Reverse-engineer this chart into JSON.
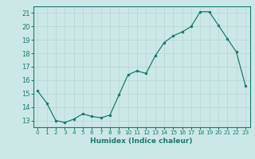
{
  "x": [
    0,
    1,
    2,
    3,
    4,
    5,
    6,
    7,
    8,
    9,
    10,
    11,
    12,
    13,
    14,
    15,
    16,
    17,
    18,
    19,
    20,
    21,
    22,
    23
  ],
  "y": [
    15.2,
    14.3,
    13.0,
    12.85,
    13.1,
    13.5,
    13.3,
    13.2,
    13.4,
    14.9,
    16.4,
    16.7,
    16.5,
    17.8,
    18.8,
    19.3,
    19.6,
    20.0,
    21.1,
    21.1,
    20.1,
    19.1,
    18.1,
    15.6
  ],
  "line_color": "#1a7a6e",
  "marker": ".",
  "marker_size": 3,
  "bg_color": "#cce8e6",
  "grid_color": "#b8d8d5",
  "tick_color": "#1a7a6e",
  "label_color": "#1a7a6e",
  "xlabel": "Humidex (Indice chaleur)",
  "ylim": [
    12.5,
    21.5
  ],
  "xlim": [
    -0.5,
    23.5
  ],
  "yticks": [
    13,
    14,
    15,
    16,
    17,
    18,
    19,
    20,
    21
  ],
  "xticks": [
    0,
    1,
    2,
    3,
    4,
    5,
    6,
    7,
    8,
    9,
    10,
    11,
    12,
    13,
    14,
    15,
    16,
    17,
    18,
    19,
    20,
    21,
    22,
    23
  ],
  "xlabel_fontsize": 6.5,
  "xlabel_fontweight": "bold",
  "ytick_fontsize": 6.0,
  "xtick_fontsize": 5.2
}
